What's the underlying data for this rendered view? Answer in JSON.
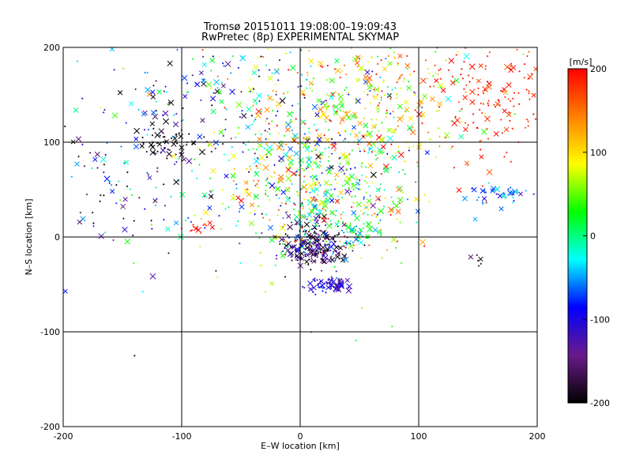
{
  "chart_data": {
    "type": "scatter",
    "title_lines": [
      "Tromsø 20151011 19:08:00–19:09:43",
      "RwPretec (8p) EXPERIMENTAL SKYMAP"
    ],
    "xlabel": "E–W location [km]",
    "ylabel": "N–S location [km]",
    "xlim": [
      -200,
      200
    ],
    "ylim": [
      -200,
      200
    ],
    "xticks": [
      -200,
      -100,
      0,
      100,
      200
    ],
    "yticks": [
      -200,
      -100,
      0,
      100,
      200
    ],
    "grid_lines": [
      -100,
      0,
      100
    ],
    "grid": true,
    "marker_types": [
      "plus",
      "cross"
    ],
    "colorbar": {
      "title": "[m/s]",
      "min": -200,
      "max": 200,
      "ticks": [
        200,
        100,
        0,
        -100,
        -200
      ],
      "colormap": [
        "#000000",
        "#6a1a8a",
        "#0000ff",
        "#00ffff",
        "#00ff00",
        "#ffff00",
        "#ff8000",
        "#ff0000"
      ]
    },
    "clusters": [
      {
        "x": 10,
        "y": -10,
        "sx": 14,
        "sy": 12,
        "n": 260,
        "vmean": -150,
        "vsd": 50
      },
      {
        "x": 25,
        "y": -50,
        "sx": 8,
        "sy": 5,
        "n": 70,
        "vmean": -110,
        "vsd": 20
      },
      {
        "x": -110,
        "y": 100,
        "sx": 12,
        "sy": 9,
        "n": 50,
        "vmean": -195,
        "vsd": 10
      },
      {
        "x": 170,
        "y": 45,
        "sx": 15,
        "sy": 5,
        "n": 45,
        "vmean": -60,
        "vsd": 25
      },
      {
        "x": 160,
        "y": 150,
        "sx": 30,
        "sy": 35,
        "n": 160,
        "vmean": 190,
        "vsd": 15
      },
      {
        "x": 10,
        "y": 60,
        "sx": 45,
        "sy": 45,
        "n": 700,
        "vmean": 40,
        "vsd": 90
      },
      {
        "x": -60,
        "y": 150,
        "sx": 60,
        "sy": 35,
        "n": 160,
        "vmean": -60,
        "vsd": 90
      },
      {
        "x": -140,
        "y": 60,
        "sx": 35,
        "sy": 60,
        "n": 120,
        "vmean": -120,
        "vsd": 80
      },
      {
        "x": 60,
        "y": 150,
        "sx": 45,
        "sy": 35,
        "n": 320,
        "vmean": 100,
        "vsd": 70
      },
      {
        "x": -85,
        "y": 10,
        "sx": 6,
        "sy": 4,
        "n": 15,
        "vmean": 180,
        "vsd": 15
      },
      {
        "x": 150,
        "y": -25,
        "sx": 3,
        "sy": 4,
        "n": 6,
        "vmean": -170,
        "vsd": 20
      },
      {
        "x": 50,
        "y": 5,
        "sx": 8,
        "sy": 6,
        "n": 30,
        "vmean": 0,
        "vsd": 30
      }
    ]
  }
}
